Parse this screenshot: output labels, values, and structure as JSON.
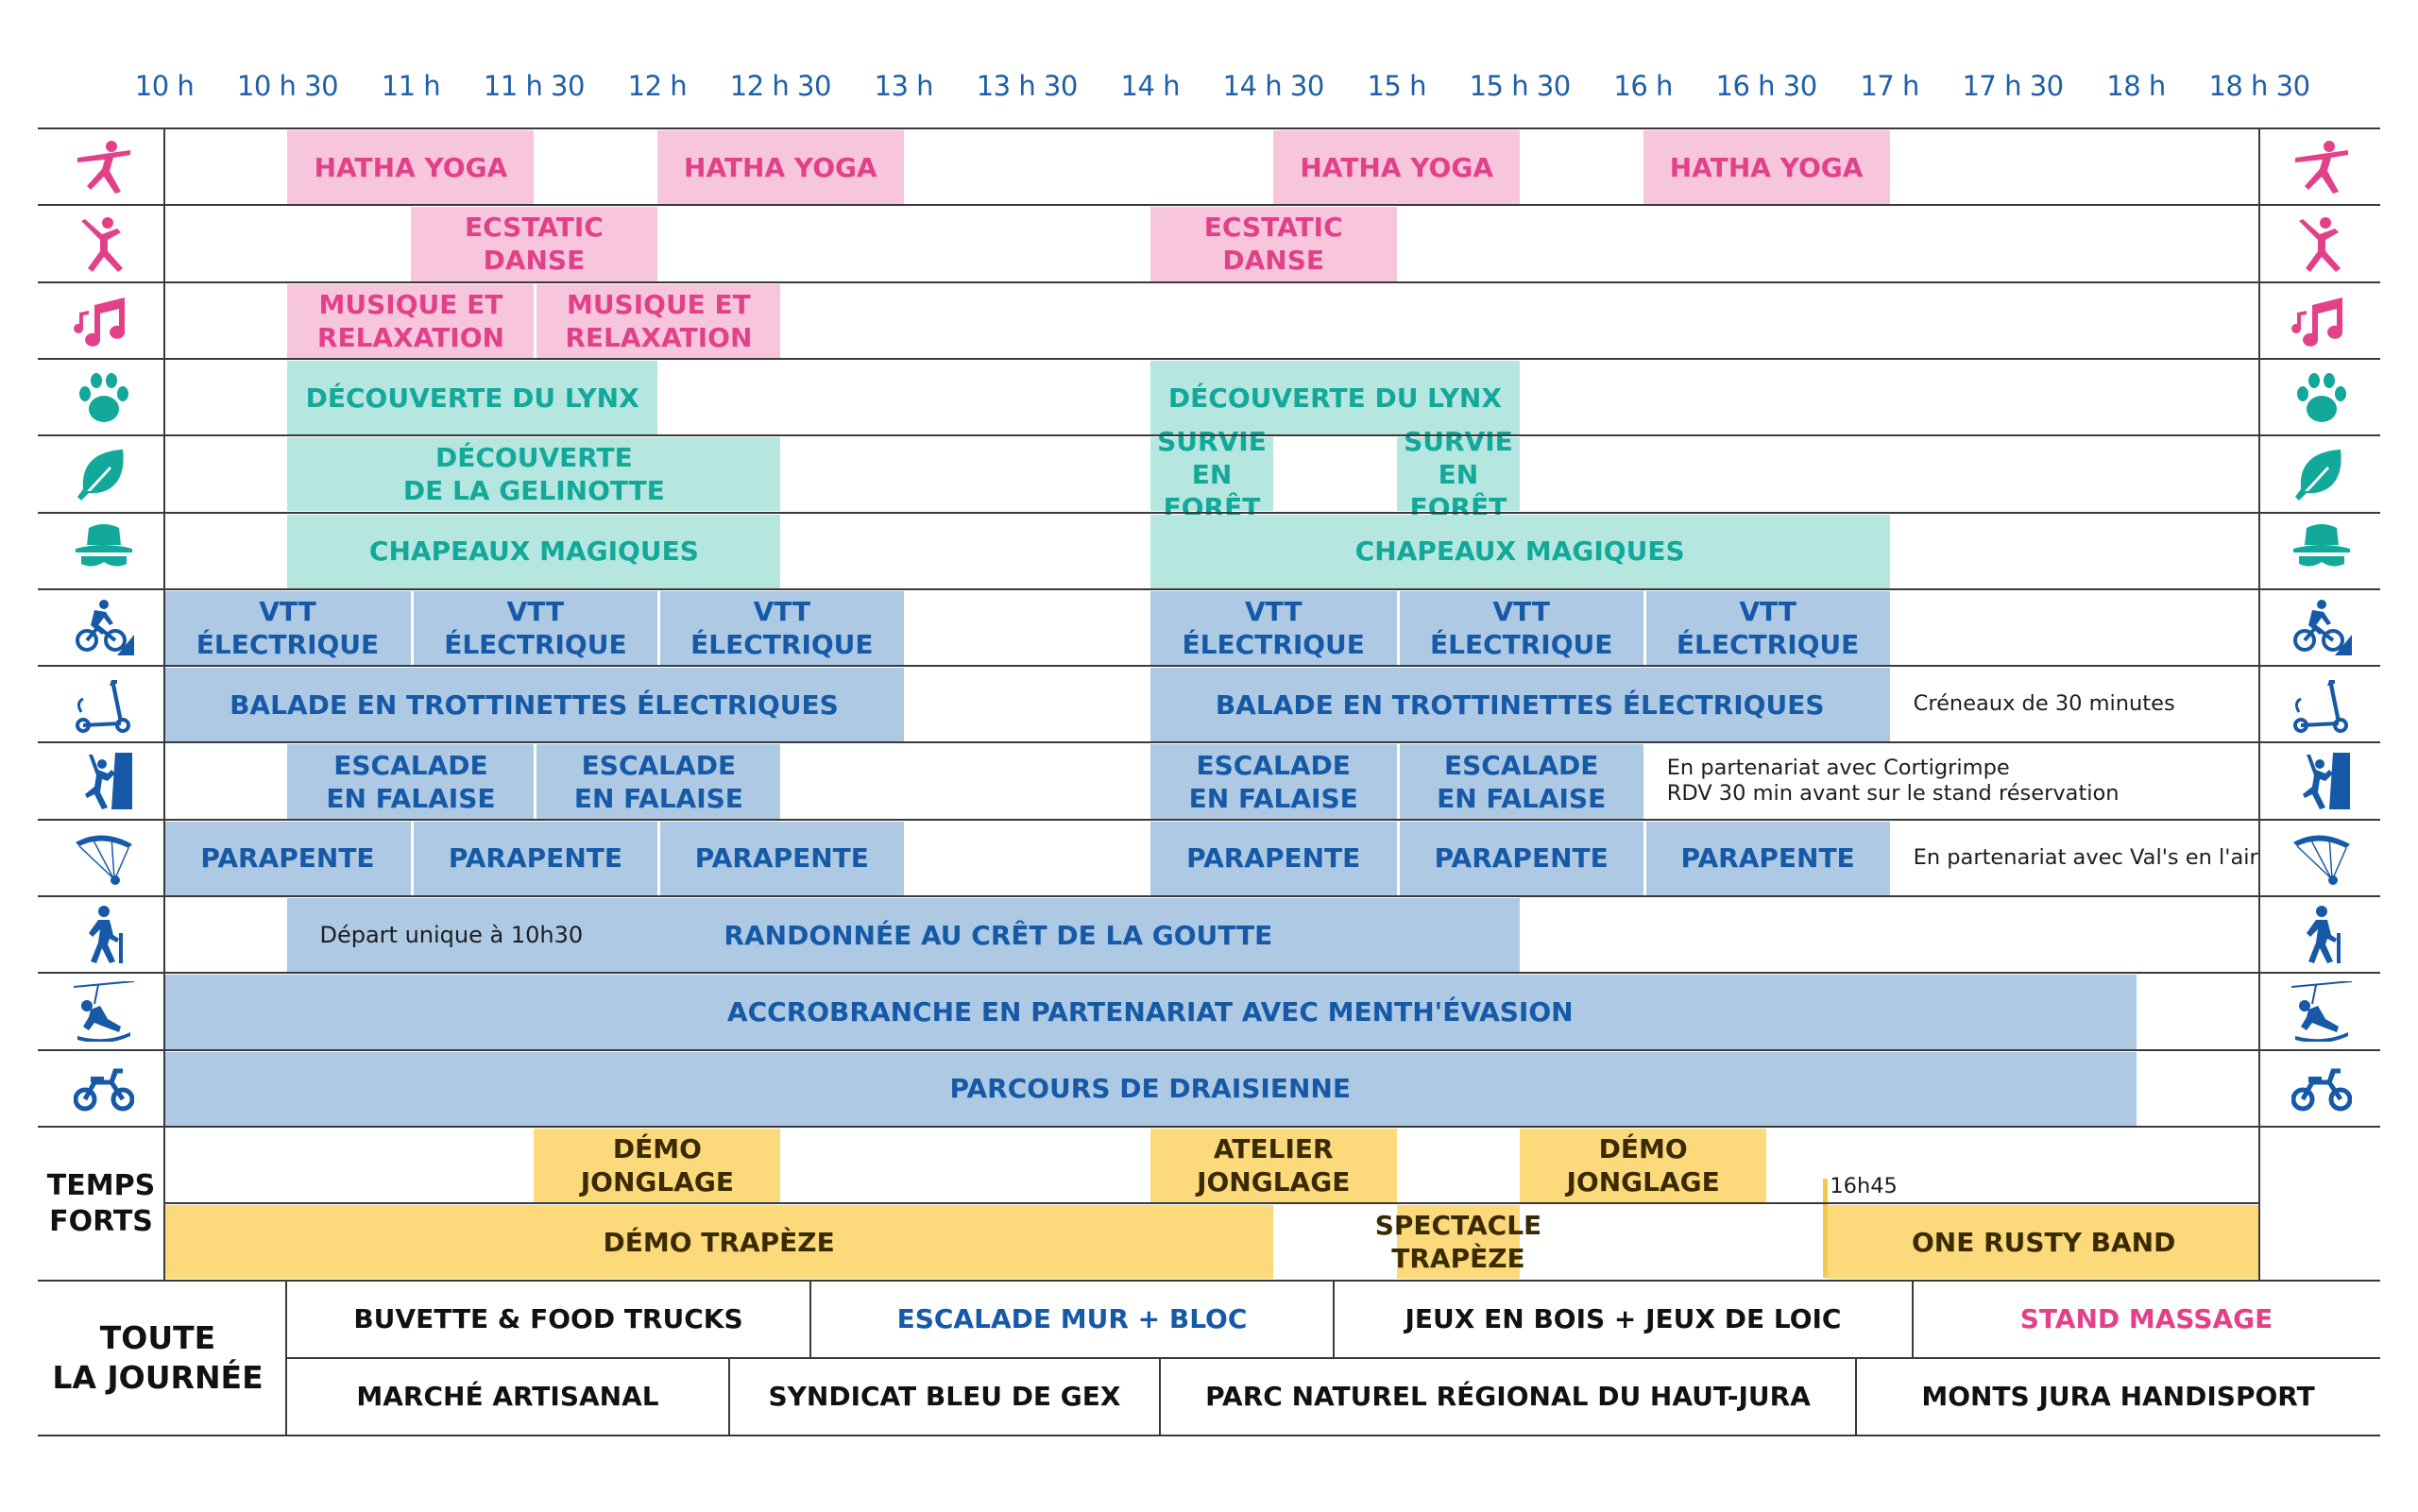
{
  "colors": {
    "pink_fill": "#f7c6dc",
    "pink_text": "#e2418a",
    "teal_fill": "#b5e6df",
    "teal_text": "#12a89a",
    "blue_fill": "#adc9e4",
    "blue_text": "#1659a7",
    "yellow_fill": "#fcd97a",
    "yellow_text": "#3a2a00",
    "dark_text": "#111111",
    "axis_text": "#1f5fa8"
  },
  "time_axis": [
    "10 h",
    "10 h 30",
    "11 h",
    "11 h 30",
    "12 h",
    "12 h 30",
    "13 h",
    "13 h 30",
    "14 h",
    "14 h 30",
    "15 h",
    "15 h 30",
    "16 h",
    "16 h 30",
    "17 h",
    "17 h 30",
    "18 h",
    "18 h 30"
  ],
  "rows": [
    {
      "icon": "yoga-icon",
      "color": "pink",
      "blocks": [
        {
          "label": "HATHA YOGA",
          "start": 10.5,
          "end": 11.5
        },
        {
          "label": "HATHA YOGA",
          "start": 12,
          "end": 13
        },
        {
          "label": "HATHA YOGA",
          "start": 14.5,
          "end": 15.5
        },
        {
          "label": "HATHA YOGA",
          "start": 16,
          "end": 17
        }
      ]
    },
    {
      "icon": "dance-icon",
      "color": "pink",
      "blocks": [
        {
          "label": "ECSTATIC DANSE",
          "start": 11,
          "end": 12
        },
        {
          "label": "ECSTATIC DANSE",
          "start": 14,
          "end": 15
        }
      ]
    },
    {
      "icon": "music-notes-icon",
      "color": "pink",
      "blocks": [
        {
          "label": "MUSIQUE ET\nRELAXATION",
          "start": 10.5,
          "end": 11.5
        },
        {
          "label": "MUSIQUE ET\nRELAXATION",
          "start": 11.5,
          "end": 12.5
        }
      ]
    },
    {
      "icon": "paw-icon",
      "color": "teal",
      "blocks": [
        {
          "label": "DÉCOUVERTE DU LYNX",
          "start": 10.5,
          "end": 12
        },
        {
          "label": "DÉCOUVERTE DU LYNX",
          "start": 14,
          "end": 15.5
        }
      ]
    },
    {
      "icon": "leaf-icon",
      "color": "teal",
      "blocks": [
        {
          "label": "DÉCOUVERTE\nDE LA GELINOTTE",
          "start": 10.5,
          "end": 12.5
        },
        {
          "label": "SURVIE\nEN FORÊT",
          "start": 14,
          "end": 14.5
        },
        {
          "label": "SURVIE\nEN FORÊT",
          "start": 15,
          "end": 15.5
        }
      ]
    },
    {
      "icon": "magic-hat-icon",
      "color": "teal",
      "blocks": [
        {
          "label": "CHAPEAUX MAGIQUES",
          "start": 10.5,
          "end": 12.5
        },
        {
          "label": "CHAPEAUX MAGIQUES",
          "start": 14,
          "end": 17
        }
      ]
    },
    {
      "icon": "mountain-bike-icon",
      "color": "blue",
      "blocks": [
        {
          "label": "VTT ÉLECTRIQUE",
          "start": 10,
          "end": 11
        },
        {
          "label": "VTT ÉLECTRIQUE",
          "start": 11,
          "end": 12
        },
        {
          "label": "VTT ÉLECTRIQUE",
          "start": 12,
          "end": 13
        },
        {
          "label": "VTT ÉLECTRIQUE",
          "start": 14,
          "end": 15
        },
        {
          "label": "VTT ÉLECTRIQUE",
          "start": 15,
          "end": 16
        },
        {
          "label": "VTT ÉLECTRIQUE",
          "start": 16,
          "end": 17
        }
      ],
      "note": "",
      "note_start": 17
    },
    {
      "icon": "scooter-icon",
      "color": "blue",
      "blocks": [
        {
          "label": "BALADE EN TROTTINETTES ÉLECTRIQUES",
          "start": 10,
          "end": 13
        },
        {
          "label": "BALADE EN TROTTINETTES ÉLECTRIQUES",
          "start": 14,
          "end": 17
        }
      ],
      "note": "Créneaux de 30 minutes",
      "note_start": 17.05
    },
    {
      "icon": "climbing-icon",
      "color": "blue",
      "blocks": [
        {
          "label": "ESCALADE\nEN FALAISE",
          "start": 10.5,
          "end": 11.5
        },
        {
          "label": "ESCALADE\nEN FALAISE",
          "start": 11.5,
          "end": 12.5
        },
        {
          "label": "ESCALADE\nEN FALAISE",
          "start": 14,
          "end": 15
        },
        {
          "label": "ESCALADE\nEN FALAISE",
          "start": 15,
          "end": 16
        }
      ],
      "note": "En partenariat avec Cortigrimpe\nRDV 30 min avant sur le stand réservation",
      "note_start": 16.05
    },
    {
      "icon": "paraglider-icon",
      "color": "blue",
      "blocks": [
        {
          "label": "PARAPENTE",
          "start": 10,
          "end": 11
        },
        {
          "label": "PARAPENTE",
          "start": 11,
          "end": 12
        },
        {
          "label": "PARAPENTE",
          "start": 12,
          "end": 13
        },
        {
          "label": "PARAPENTE",
          "start": 14,
          "end": 15
        },
        {
          "label": "PARAPENTE",
          "start": 15,
          "end": 16
        },
        {
          "label": "PARAPENTE",
          "start": 16,
          "end": 17
        }
      ],
      "note": "En partenariat avec Val's en l'air",
      "note_start": 17.05
    },
    {
      "icon": "hiker-icon",
      "color": "blue",
      "blocks": [
        {
          "label": "RANDONNÉE AU CRÊT DE LA GOUTTE",
          "start": 10.5,
          "end": 15.5,
          "sublabel": "Départ unique à 10h30"
        }
      ]
    },
    {
      "icon": "zipline-icon",
      "color": "blue",
      "blocks": [
        {
          "label": "ACCROBRANCHE EN PARTENARIAT AVEC MENTH'ÉVASION",
          "start": 10,
          "end": 18
        }
      ]
    },
    {
      "icon": "balance-bike-icon",
      "color": "blue",
      "blocks": [
        {
          "label": "PARCOURS DE DRAISIENNE",
          "start": 10,
          "end": 18
        }
      ]
    }
  ],
  "temps_forts": {
    "label": "TEMPS\nFORTS",
    "row1": [
      {
        "label": "DÉMO\nJONGLAGE",
        "start": 11.5,
        "end": 12.5
      },
      {
        "label": "ATELIER\nJONGLAGE",
        "start": 14,
        "end": 15
      },
      {
        "label": "DÉMO\nJONGLAGE",
        "start": 15.5,
        "end": 16.5
      }
    ],
    "row2": [
      {
        "label": "DÉMO TRAPÈZE",
        "start": 10,
        "end": 14.5
      },
      {
        "label": "SPECTACLE\nTRAPÈZE",
        "start": 15,
        "end": 15.5
      },
      {
        "label": "ONE RUSTY BAND",
        "start": 16.75,
        "end": 18.5
      }
    ],
    "marker_label": "16h45"
  },
  "toute_la_journee": {
    "label": "TOUTE\nLA JOURNÉE",
    "row1": [
      {
        "label": "BUVETTE & FOOD TRUCKS",
        "color": "dark"
      },
      {
        "label": "ESCALADE MUR + BLOC",
        "color": "blue"
      },
      {
        "label": "JEUX EN BOIS + JEUX DE LOIC",
        "color": "dark"
      },
      {
        "label": "STAND MASSAGE",
        "color": "pink"
      }
    ],
    "row2": [
      {
        "label": "MARCHÉ ARTISANAL",
        "color": "dark"
      },
      {
        "label": "SYNDICAT BLEU DE GEX",
        "color": "dark"
      },
      {
        "label": "PARC NATUREL RÉGIONAL DU HAUT-JURA",
        "color": "dark"
      },
      {
        "label": "MONTS JURA HANDISPORT",
        "color": "dark"
      }
    ]
  }
}
